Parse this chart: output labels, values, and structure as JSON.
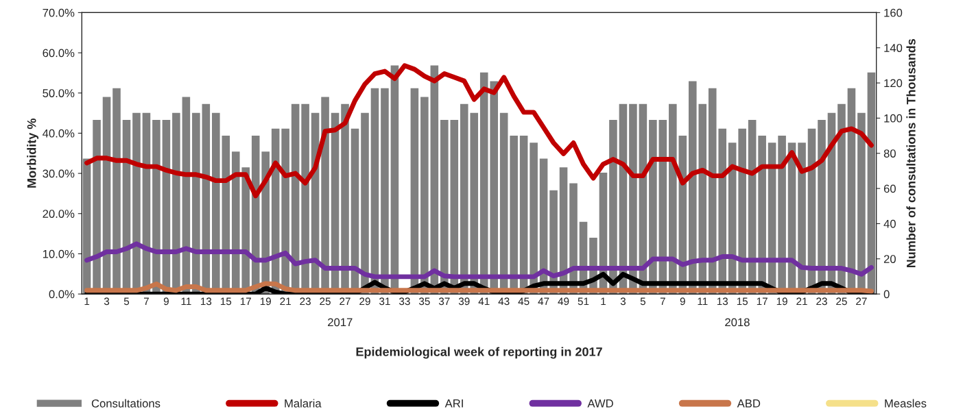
{
  "chart_data": {
    "type": "line",
    "xlabel": "Epidemiological week of reporting in 2017",
    "ylabel": "Morbidity %",
    "y2label": "Number of consultations in Thousands",
    "categories": [
      "1",
      null,
      "3",
      null,
      "5",
      null,
      "7",
      null,
      "9",
      null,
      "11",
      null,
      "13",
      null,
      "15",
      null,
      "17",
      null,
      "19",
      null,
      "21",
      null,
      "23",
      null,
      "25",
      null,
      "27",
      null,
      "29",
      null,
      "31",
      null,
      "33",
      null,
      "35",
      null,
      "37",
      null,
      "39",
      null,
      "41",
      null,
      "43",
      null,
      "45",
      null,
      "47",
      null,
      "49",
      null,
      "51",
      null,
      "1",
      null,
      "3",
      null,
      "5",
      null,
      "7",
      null,
      "9",
      null,
      "11",
      null,
      "13",
      null,
      "15",
      null,
      "17",
      null,
      "19",
      null,
      "21",
      null,
      "23",
      null,
      "25",
      null,
      "27",
      null
    ],
    "annotations": [
      "2017",
      "2018"
    ],
    "ylim": [
      0,
      70
    ],
    "yticks": [
      {
        "value": 0,
        "label": "0.0%"
      },
      {
        "value": 10,
        "label": "10.0%"
      },
      {
        "value": 20,
        "label": "20.0%"
      },
      {
        "value": 30,
        "label": "30.0%"
      },
      {
        "value": 40,
        "label": "40.0%"
      },
      {
        "value": 50,
        "label": "50.0%"
      },
      {
        "value": 60,
        "label": "60.0%"
      },
      {
        "value": 70,
        "label": "70.0%"
      }
    ],
    "y2lim": [
      0,
      160
    ],
    "y2ticks": [
      0,
      20,
      40,
      60,
      80,
      100,
      120,
      140,
      160
    ],
    "legend": "bottom",
    "grid": false,
    "marker": "none",
    "line_style": "solid",
    "series": [
      {
        "name": "Consultations",
        "type": "bar",
        "axis": "y2",
        "color": "#808080",
        "values": [
          77,
          99,
          112,
          117,
          99,
          103,
          103,
          99,
          99,
          103,
          112,
          103,
          108,
          103,
          90,
          81,
          72,
          90,
          81,
          94,
          94,
          108,
          108,
          103,
          112,
          103,
          108,
          94,
          103,
          117,
          117,
          130,
          null,
          117,
          112,
          130,
          99,
          99,
          108,
          103,
          126,
          121,
          103,
          90,
          90,
          86,
          77,
          59,
          72,
          63,
          41,
          32,
          69,
          99,
          108,
          108,
          108,
          99,
          99,
          108,
          90,
          121,
          108,
          117,
          94,
          86,
          94,
          99,
          90,
          86,
          90,
          86,
          86,
          94,
          99,
          103,
          108,
          117,
          103,
          126
        ]
      },
      {
        "name": "Malaria",
        "color": "#c00000",
        "values": [
          32.6,
          33.8,
          33.8,
          33.2,
          33.2,
          32.3,
          31.7,
          31.7,
          30.8,
          30.1,
          29.7,
          29.7,
          29.1,
          28.2,
          28.2,
          29.7,
          29.7,
          24.4,
          28.2,
          32.6,
          29.4,
          30.0,
          27.6,
          31.4,
          40.5,
          40.8,
          42.5,
          48.1,
          52.2,
          54.8,
          55.4,
          53.6,
          56.8,
          55.9,
          54.2,
          53.0,
          54.8,
          53.9,
          53.0,
          48.4,
          51.0,
          50.1,
          53.9,
          49.2,
          45.2,
          45.2,
          41.4,
          37.6,
          34.9,
          37.6,
          32.3,
          28.8,
          32.3,
          33.5,
          32.3,
          29.4,
          29.4,
          33.5,
          33.5,
          33.5,
          27.6,
          30.0,
          30.8,
          29.4,
          29.4,
          31.7,
          30.8,
          30.0,
          31.7,
          31.7,
          31.7,
          35.2,
          30.5,
          31.4,
          33.2,
          37.0,
          40.5,
          41.1,
          39.9,
          37.0
        ]
      },
      {
        "name": "ARI",
        "color": "#000000",
        "values": [
          0,
          0,
          0,
          0,
          0,
          0,
          0,
          0,
          0,
          0,
          0,
          0,
          0,
          0,
          0,
          0,
          0,
          0,
          1.5,
          0.5,
          0,
          0,
          0,
          0,
          0,
          0,
          0,
          0,
          1.5,
          2.9,
          1.5,
          0.5,
          0.5,
          1.5,
          2.6,
          1.4,
          2.6,
          1.5,
          2.6,
          2.6,
          1.4,
          0.5,
          0,
          0,
          0.8,
          2.0,
          2.6,
          2.6,
          2.6,
          2.6,
          2.6,
          3.5,
          4.9,
          2.6,
          4.9,
          3.8,
          2.6,
          2.6,
          2.6,
          2.6,
          2.6,
          2.6,
          2.6,
          2.6,
          2.6,
          2.6,
          2.6,
          2.6,
          2.6,
          1.4,
          0.3,
          0.3,
          0.5,
          1.5,
          2.6,
          2.6,
          1.5,
          0.3,
          0.3,
          0.3
        ]
      },
      {
        "name": "AWD",
        "color": "#7030a0",
        "values": [
          8.4,
          9.3,
          10.5,
          10.5,
          11.3,
          12.5,
          11.3,
          10.5,
          10.5,
          10.5,
          11.3,
          10.5,
          10.5,
          10.5,
          10.5,
          10.5,
          10.5,
          8.4,
          8.4,
          9.3,
          10.2,
          7.5,
          8.1,
          8.4,
          6.4,
          6.4,
          6.4,
          6.4,
          4.9,
          4.3,
          4.3,
          4.3,
          4.3,
          4.3,
          4.3,
          5.8,
          4.5,
          4.3,
          4.3,
          4.3,
          4.3,
          4.3,
          4.3,
          4.3,
          4.3,
          4.3,
          5.8,
          4.5,
          5.2,
          6.4,
          6.4,
          6.4,
          6.4,
          6.4,
          6.4,
          6.4,
          6.4,
          8.7,
          8.7,
          8.7,
          7.3,
          8.1,
          8.4,
          8.4,
          9.3,
          9.3,
          8.4,
          8.4,
          8.4,
          8.4,
          8.4,
          8.4,
          6.6,
          6.4,
          6.4,
          6.4,
          6.4,
          5.8,
          4.9,
          6.6
        ]
      },
      {
        "name": "ABD",
        "color": "#c8764b",
        "values": [
          0.9,
          0.9,
          0.9,
          0.9,
          0.9,
          0.9,
          1.5,
          2.5,
          1.2,
          0.9,
          1.8,
          1.8,
          0.9,
          0.9,
          0.9,
          0.9,
          0.9,
          1.8,
          2.6,
          2.5,
          1.3,
          0.9,
          0.9,
          0.9,
          0.9,
          0.9,
          0.9,
          0.9,
          0.9,
          0.9,
          0.9,
          0.9,
          0.9,
          0.9,
          0.9,
          0.9,
          0.9,
          0.9,
          0.9,
          0.9,
          0.9,
          0.9,
          0.9,
          0.9,
          0.9,
          0.9,
          0.9,
          0.9,
          0.9,
          0.9,
          0.9,
          0.9,
          0.9,
          0.9,
          0.9,
          0.9,
          0.9,
          0.9,
          0.9,
          0.9,
          0.9,
          0.9,
          0.9,
          0.9,
          0.9,
          0.9,
          0.9,
          0.9,
          0.9,
          0.9,
          0.9,
          0.9,
          0.9,
          0.9,
          0.9,
          0.9,
          0.9,
          0.9,
          0.9,
          0.7
        ]
      },
      {
        "name": "Measles",
        "color": "#f5e08a",
        "values": [
          null,
          null,
          null,
          null,
          null,
          null,
          null,
          null,
          null,
          null,
          null,
          null,
          null,
          null,
          null,
          null,
          null,
          null,
          null,
          null,
          null,
          null,
          null,
          null,
          null,
          null,
          null,
          null,
          null,
          null,
          null,
          null,
          null,
          null,
          null,
          null,
          null,
          null,
          null,
          null,
          null,
          null,
          null,
          null,
          null,
          null,
          null,
          null,
          null,
          null,
          null,
          null,
          null,
          null,
          null,
          null,
          null,
          null,
          null,
          null,
          null,
          null,
          null,
          null,
          null,
          null,
          null,
          null,
          null,
          null,
          null,
          null,
          null,
          null,
          null,
          null,
          null,
          null,
          null,
          null
        ]
      }
    ]
  }
}
